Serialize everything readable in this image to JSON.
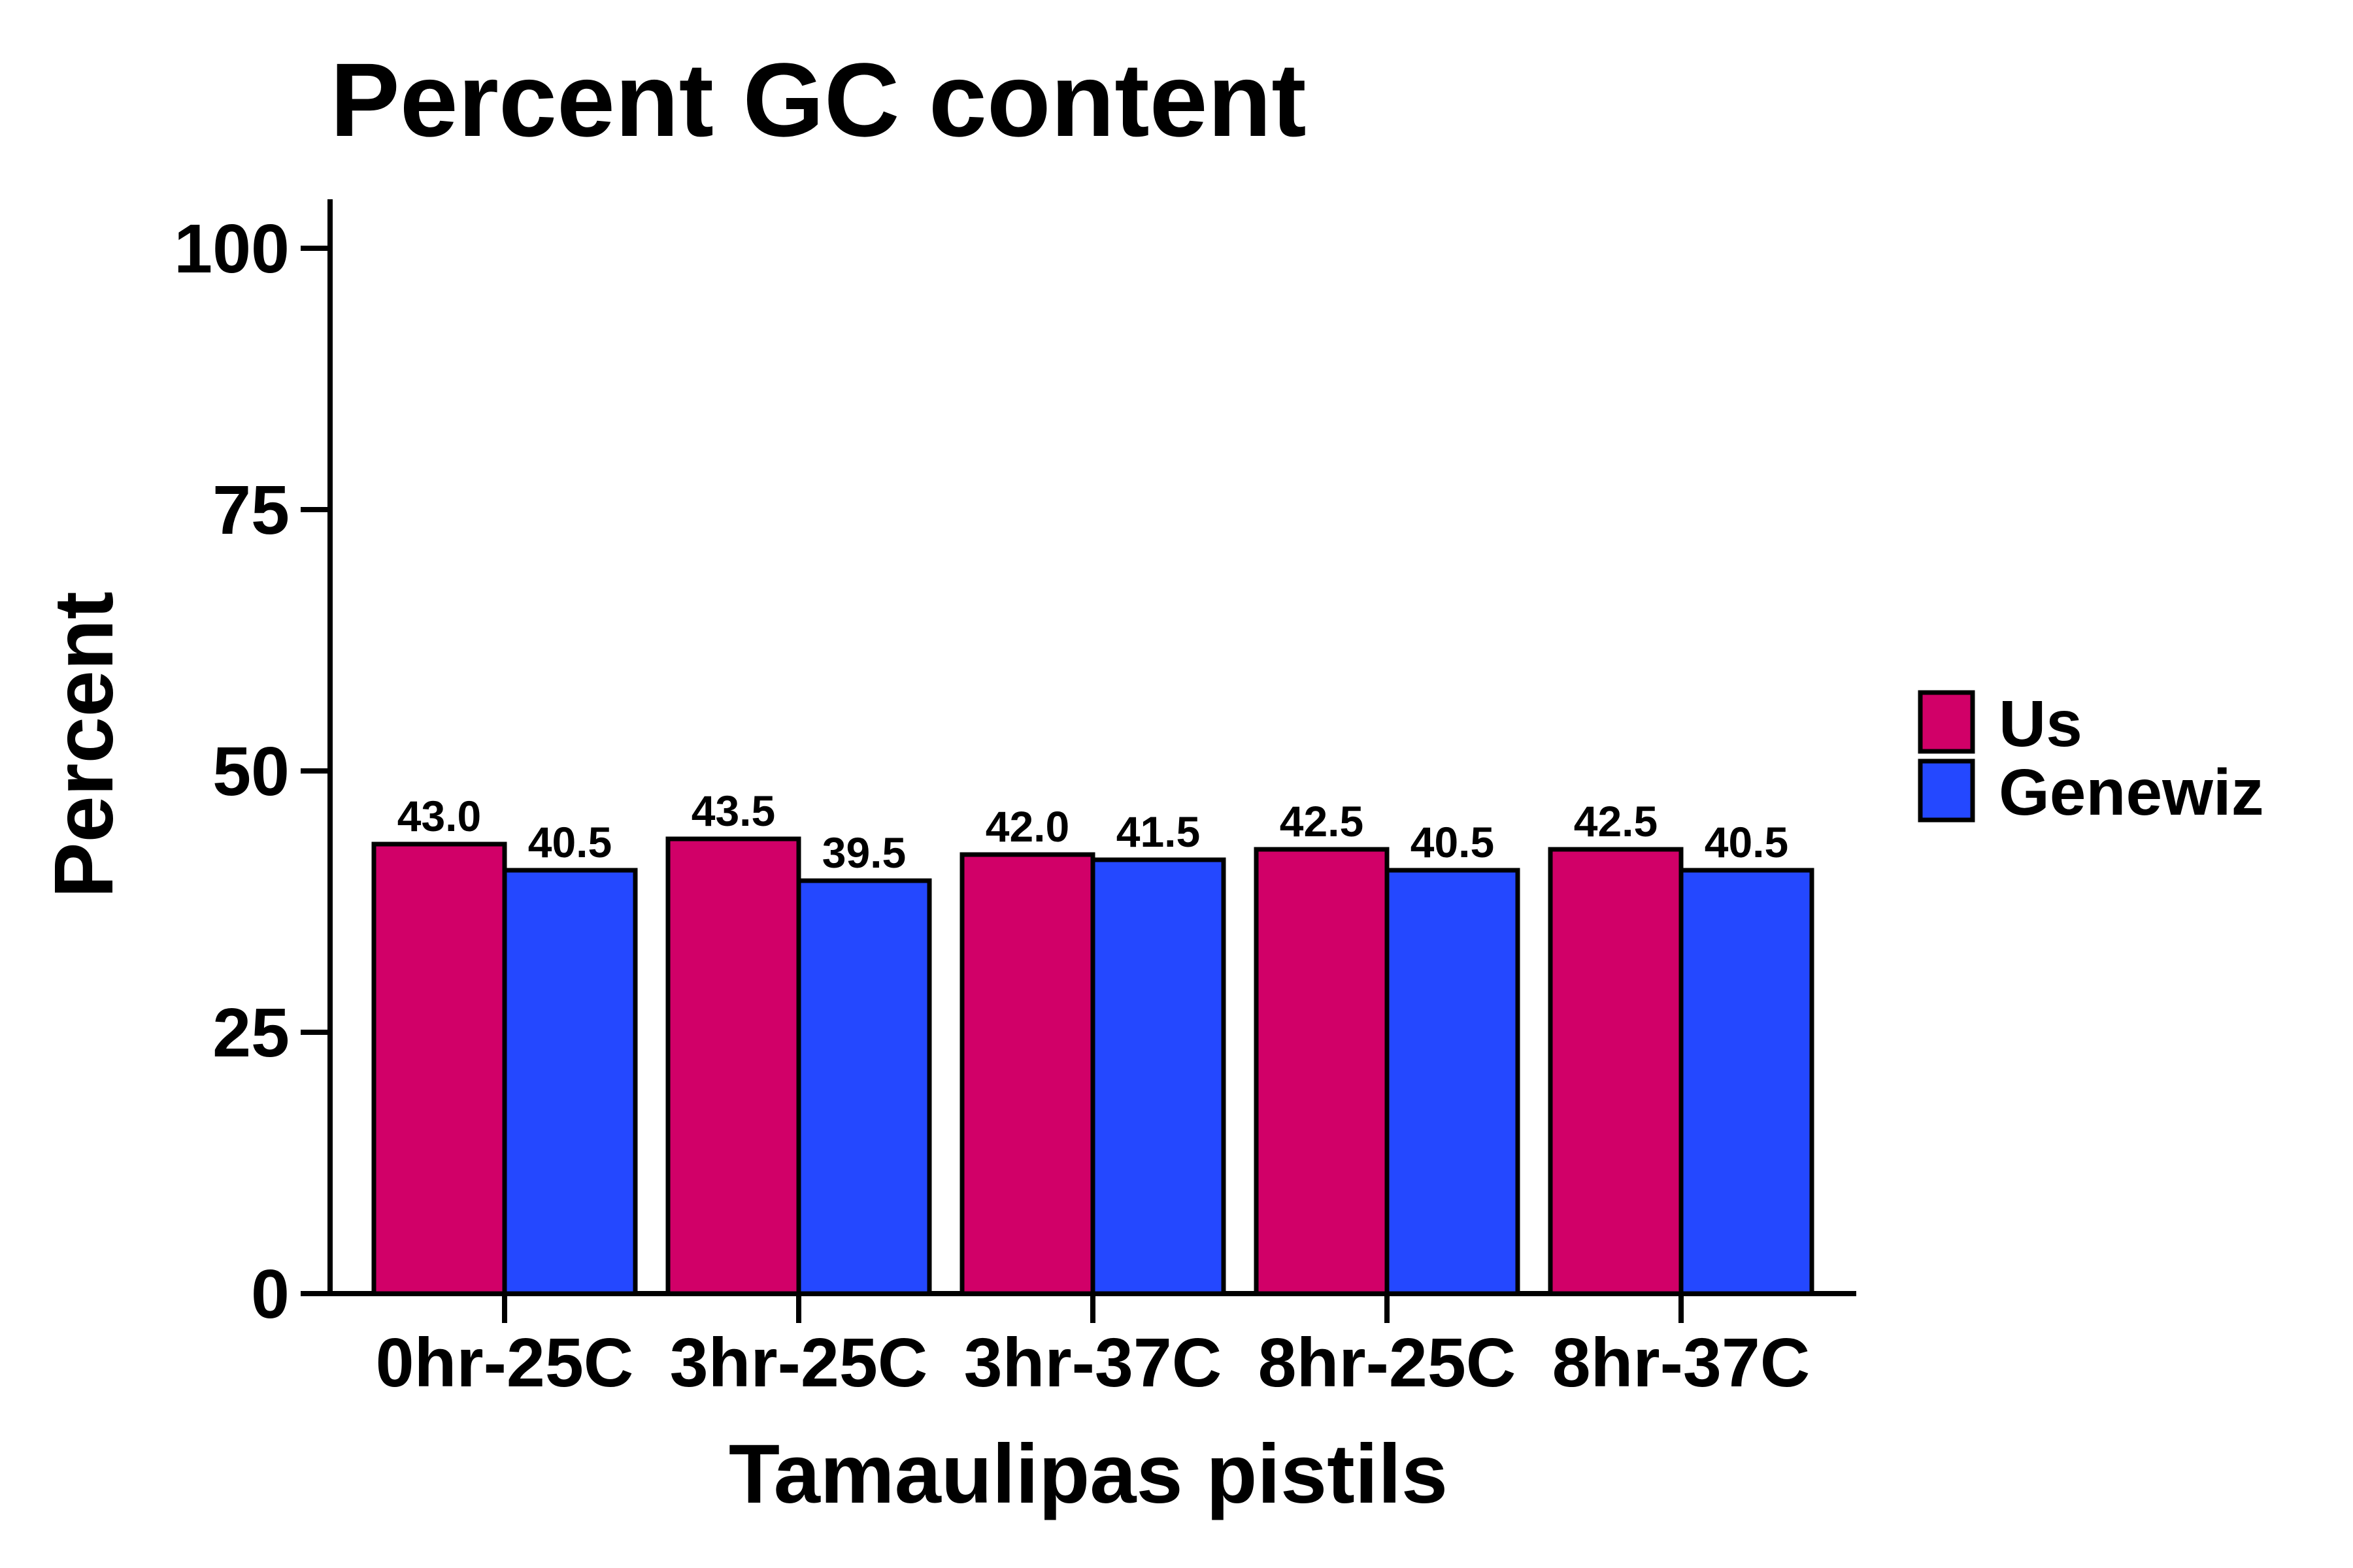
{
  "chart_data": {
    "type": "bar",
    "title": "Percent GC content",
    "xlabel": "Tamaulipas pistils",
    "ylabel": "Percent",
    "categories": [
      "0hr-25C",
      "3hr-25C",
      "3hr-37C",
      "8hr-25C",
      "8hr-37C"
    ],
    "series": [
      {
        "name": "Us",
        "values": [
          43.0,
          43.5,
          42.0,
          42.5,
          42.5
        ],
        "color": "#D10068"
      },
      {
        "name": "Genewiz",
        "values": [
          40.5,
          39.5,
          41.5,
          40.5,
          40.5
        ],
        "color": "#2448FF"
      }
    ],
    "ylim": [
      0,
      100
    ],
    "yticks": [
      0,
      25,
      50,
      75,
      100
    ],
    "grid": false,
    "legend_position": "right",
    "data_labels": true
  }
}
